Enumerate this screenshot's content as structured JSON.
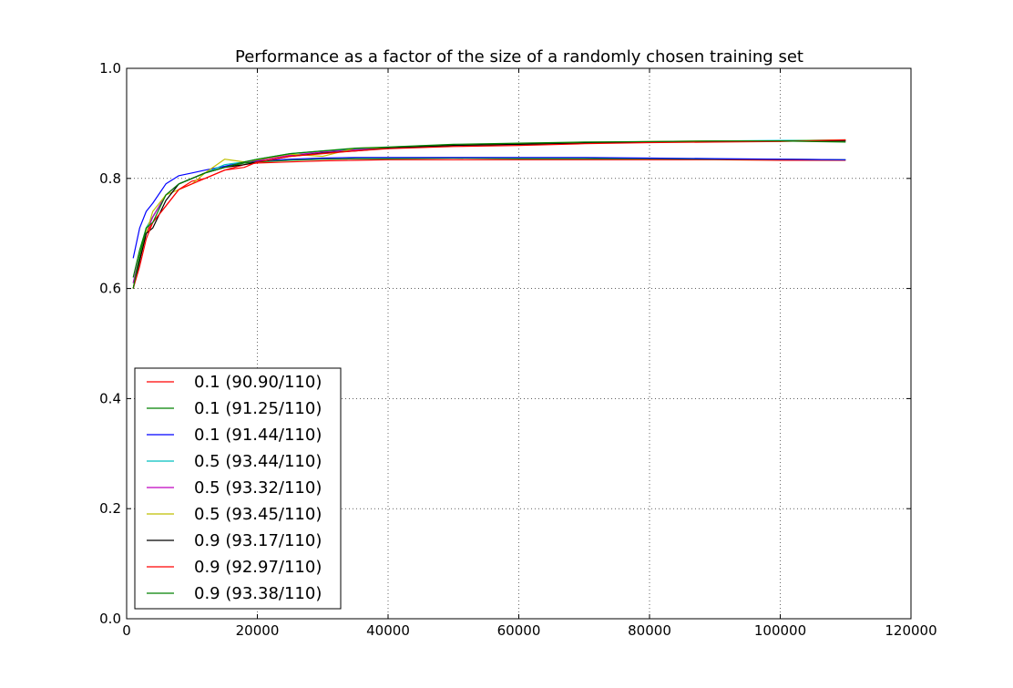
{
  "chart_data": {
    "type": "line",
    "title": "Performance as a factor of the size of a randomly chosen training set",
    "xlabel": "",
    "ylabel": "",
    "xlim": [
      0,
      120000
    ],
    "ylim": [
      0.0,
      1.0
    ],
    "xticks": [
      0,
      20000,
      40000,
      60000,
      80000,
      100000,
      120000
    ],
    "xtick_labels": [
      "0",
      "20000",
      "40000",
      "60000",
      "80000",
      "100000",
      "120000"
    ],
    "yticks": [
      0.0,
      0.2,
      0.4,
      0.6,
      0.8,
      1.0
    ],
    "ytick_labels": [
      "0.0",
      "0.2",
      "0.4",
      "0.6",
      "0.8",
      "1.0"
    ],
    "grid": true,
    "legend_position": "lower-left",
    "series": [
      {
        "name": "0.1 (90.90/110)",
        "color": "#ff0000",
        "x": [
          1000,
          2000,
          3000,
          4000,
          6000,
          8000,
          10000,
          12000,
          15000,
          18000,
          20000,
          25000,
          30000,
          35000,
          40000,
          50000,
          60000,
          70000,
          80000,
          90000,
          100000,
          110000
        ],
        "y": [
          0.6,
          0.65,
          0.7,
          0.72,
          0.75,
          0.78,
          0.795,
          0.8,
          0.815,
          0.825,
          0.828,
          0.83,
          0.832,
          0.833,
          0.834,
          0.834,
          0.834,
          0.834,
          0.834,
          0.834,
          0.833,
          0.833
        ]
      },
      {
        "name": "0.1 (91.25/110)",
        "color": "#008000",
        "x": [
          1000,
          2000,
          3000,
          4000,
          6000,
          8000,
          10000,
          12000,
          15000,
          18000,
          20000,
          25000,
          30000,
          35000,
          40000,
          50000,
          60000,
          70000,
          80000,
          90000,
          100000,
          110000
        ],
        "y": [
          0.62,
          0.67,
          0.71,
          0.73,
          0.77,
          0.79,
          0.8,
          0.81,
          0.82,
          0.828,
          0.83,
          0.833,
          0.835,
          0.836,
          0.836,
          0.837,
          0.836,
          0.836,
          0.836,
          0.835,
          0.835,
          0.834
        ]
      },
      {
        "name": "0.1 (91.44/110)",
        "color": "#0000ff",
        "x": [
          1000,
          2000,
          3000,
          4000,
          6000,
          8000,
          10000,
          12000,
          15000,
          18000,
          20000,
          25000,
          30000,
          35000,
          40000,
          50000,
          60000,
          70000,
          80000,
          90000,
          100000,
          110000
        ],
        "y": [
          0.655,
          0.71,
          0.74,
          0.755,
          0.79,
          0.805,
          0.81,
          0.815,
          0.822,
          0.83,
          0.832,
          0.835,
          0.837,
          0.838,
          0.838,
          0.838,
          0.838,
          0.838,
          0.837,
          0.836,
          0.835,
          0.834
        ]
      },
      {
        "name": "0.5 (93.44/110)",
        "color": "#00bfbf",
        "x": [
          1000,
          2000,
          3000,
          4000,
          6000,
          8000,
          10000,
          12000,
          15000,
          18000,
          20000,
          25000,
          30000,
          35000,
          40000,
          50000,
          60000,
          70000,
          80000,
          90000,
          100000,
          110000
        ],
        "y": [
          0.61,
          0.66,
          0.71,
          0.73,
          0.77,
          0.79,
          0.8,
          0.81,
          0.825,
          0.83,
          0.835,
          0.845,
          0.85,
          0.853,
          0.856,
          0.86,
          0.862,
          0.865,
          0.866,
          0.868,
          0.869,
          0.87
        ]
      },
      {
        "name": "0.5 (93.32/110)",
        "color": "#bf00bf",
        "x": [
          1000,
          2000,
          3000,
          4000,
          6000,
          8000,
          10000,
          12000,
          15000,
          18000,
          20000,
          25000,
          30000,
          35000,
          40000,
          50000,
          60000,
          70000,
          80000,
          90000,
          100000,
          110000
        ],
        "y": [
          0.61,
          0.66,
          0.7,
          0.73,
          0.77,
          0.79,
          0.8,
          0.81,
          0.82,
          0.83,
          0.833,
          0.842,
          0.848,
          0.852,
          0.855,
          0.86,
          0.862,
          0.864,
          0.866,
          0.867,
          0.868,
          0.869
        ]
      },
      {
        "name": "0.5 (93.45/110)",
        "color": "#bfbf00",
        "x": [
          1000,
          2000,
          3000,
          4000,
          6000,
          8000,
          10000,
          12000,
          15000,
          18000,
          20000,
          25000,
          30000,
          35000,
          40000,
          50000,
          60000,
          70000,
          80000,
          90000,
          100000,
          110000
        ],
        "y": [
          0.6,
          0.66,
          0.7,
          0.74,
          0.77,
          0.78,
          0.79,
          0.81,
          0.835,
          0.83,
          0.834,
          0.844,
          0.84,
          0.855,
          0.856,
          0.86,
          0.863,
          0.865,
          0.867,
          0.868,
          0.868,
          0.87
        ]
      },
      {
        "name": "0.9 (93.17/110)",
        "color": "#000000",
        "x": [
          1000,
          2000,
          3000,
          4000,
          6000,
          8000,
          10000,
          12000,
          15000,
          18000,
          20000,
          25000,
          30000,
          35000,
          40000,
          50000,
          60000,
          70000,
          80000,
          90000,
          100000,
          110000
        ],
        "y": [
          0.6,
          0.65,
          0.7,
          0.71,
          0.76,
          0.79,
          0.8,
          0.81,
          0.82,
          0.825,
          0.83,
          0.84,
          0.846,
          0.85,
          0.855,
          0.86,
          0.862,
          0.864,
          0.866,
          0.867,
          0.868,
          0.868
        ]
      },
      {
        "name": "0.9 (92.97/110)",
        "color": "#ff0000",
        "x": [
          1000,
          2000,
          3000,
          4000,
          6000,
          8000,
          10000,
          12000,
          15000,
          18000,
          20000,
          25000,
          30000,
          35000,
          40000,
          50000,
          60000,
          70000,
          80000,
          90000,
          100000,
          110000
        ],
        "y": [
          0.6,
          0.64,
          0.69,
          0.72,
          0.75,
          0.78,
          0.79,
          0.8,
          0.815,
          0.82,
          0.83,
          0.84,
          0.845,
          0.85,
          0.854,
          0.858,
          0.86,
          0.863,
          0.865,
          0.866,
          0.867,
          0.87
        ]
      },
      {
        "name": "0.9 (93.38/110)",
        "color": "#008000",
        "x": [
          1000,
          2000,
          3000,
          4000,
          6000,
          8000,
          10000,
          12000,
          15000,
          18000,
          20000,
          25000,
          30000,
          35000,
          40000,
          50000,
          60000,
          70000,
          80000,
          90000,
          100000,
          110000
        ],
        "y": [
          0.6,
          0.66,
          0.71,
          0.72,
          0.77,
          0.79,
          0.8,
          0.81,
          0.82,
          0.83,
          0.835,
          0.845,
          0.85,
          0.855,
          0.857,
          0.862,
          0.864,
          0.866,
          0.867,
          0.868,
          0.868,
          0.866
        ]
      }
    ]
  }
}
